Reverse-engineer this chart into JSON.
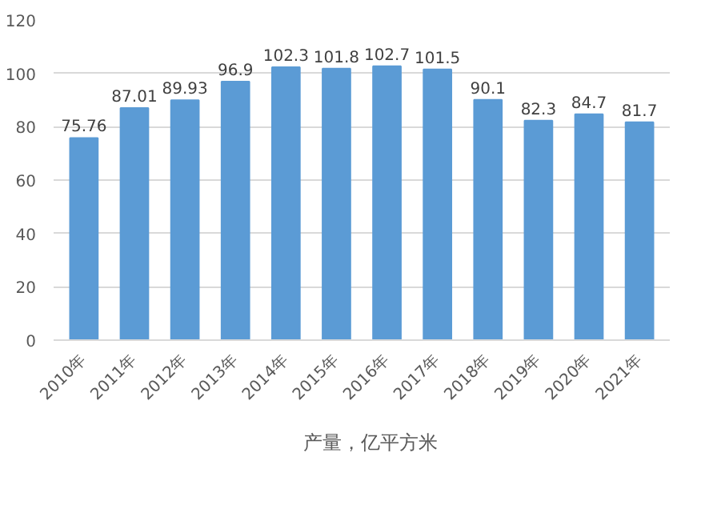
{
  "chart_data": {
    "type": "bar",
    "categories": [
      "2010年",
      "2011年",
      "2012年",
      "2013年",
      "2014年",
      "2015年",
      "2016年",
      "2017年",
      "2018年",
      "2019年",
      "2020年",
      "2021年"
    ],
    "series": [
      {
        "name": "产量，亿平方米",
        "color": "#5b9bd5",
        "values": [
          75.76,
          87.01,
          89.93,
          96.9,
          102.3,
          101.8,
          102.7,
          101.5,
          90.1,
          82.3,
          84.7,
          81.7
        ]
      }
    ],
    "ylim": [
      0,
      120
    ],
    "yticks": [
      0,
      20,
      40,
      60,
      80,
      100,
      120
    ],
    "grid": "y",
    "legend": "bottom",
    "data_labels": true
  }
}
